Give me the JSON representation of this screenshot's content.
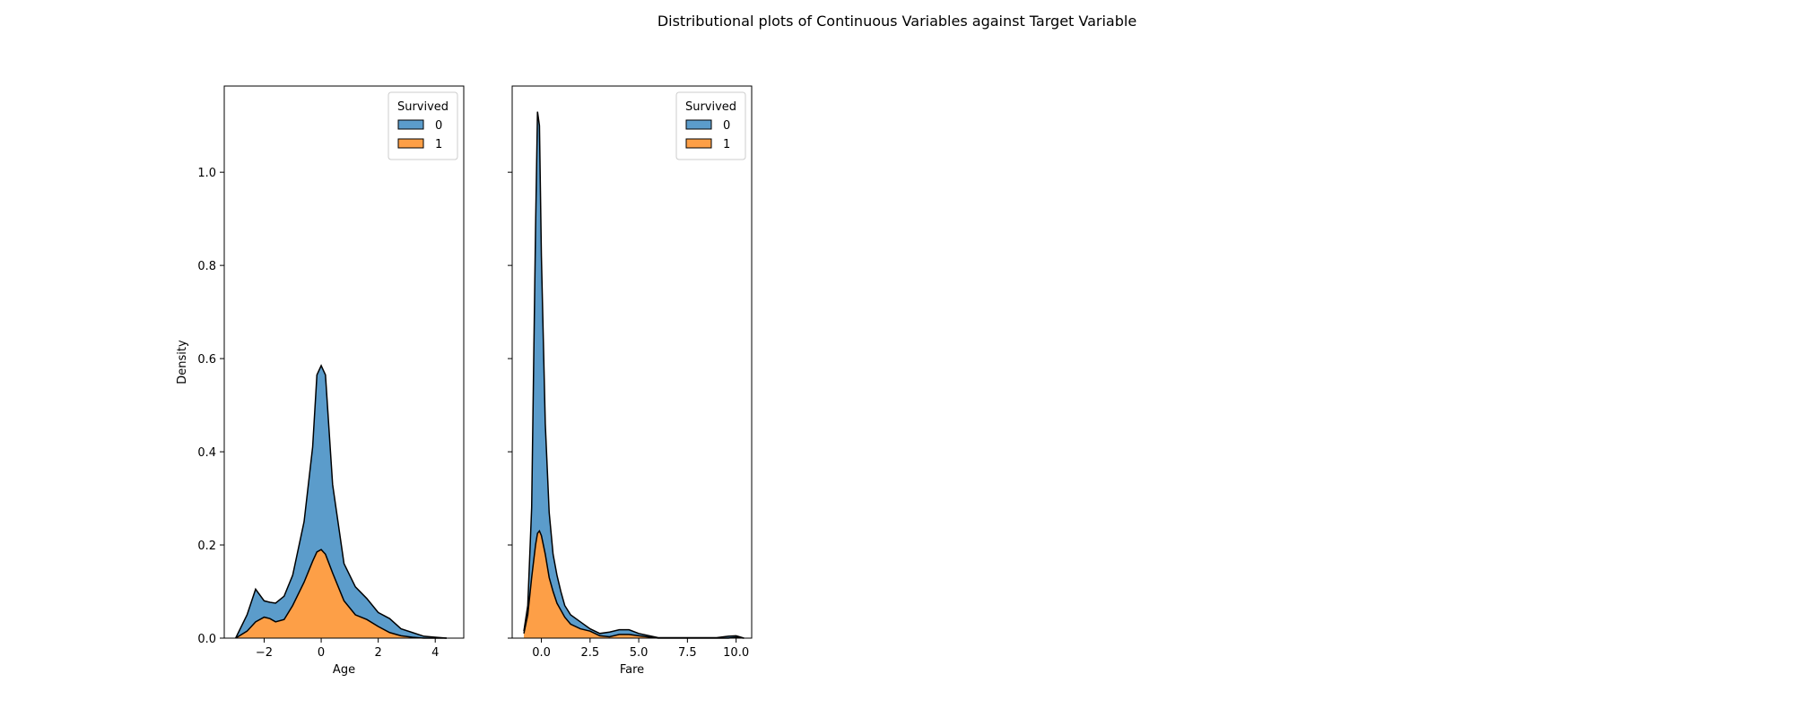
{
  "figure": {
    "suptitle": "Distributional plots of Continuous Variables against Target Variable"
  },
  "colors": {
    "class_0": "#5b9ccb",
    "class_1": "#fd9f47",
    "outline": "#000000"
  },
  "chart_data": [
    {
      "type": "area",
      "subtype": "stacked-kde",
      "xlabel": "Age",
      "ylabel": "Density",
      "xlim": [
        -3.4,
        5.0
      ],
      "ylim": [
        0,
        1.185
      ],
      "xticks": [
        -2,
        0,
        2,
        4
      ],
      "xtick_labels": [
        "−2",
        "0",
        "2",
        "4"
      ],
      "yticks": [
        0.0,
        0.2,
        0.4,
        0.6,
        0.8,
        1.0
      ],
      "ytick_labels": [
        "0.0",
        "0.2",
        "0.4",
        "0.6",
        "0.8",
        "1.0"
      ],
      "show_ytick_labels": true,
      "legend": {
        "title": "Survived",
        "entries": [
          "0",
          "1"
        ],
        "placement": "top-right"
      },
      "x": [
        -3.0,
        -2.6,
        -2.3,
        -2.0,
        -1.8,
        -1.6,
        -1.3,
        -1.0,
        -0.6,
        -0.3,
        -0.15,
        0.0,
        0.15,
        0.4,
        0.8,
        1.2,
        1.6,
        2.0,
        2.4,
        2.8,
        3.2,
        3.6,
        4.0,
        4.4
      ],
      "series": [
        {
          "name": "1",
          "values": [
            0.0,
            0.015,
            0.035,
            0.045,
            0.042,
            0.035,
            0.04,
            0.07,
            0.12,
            0.165,
            0.185,
            0.19,
            0.18,
            0.14,
            0.08,
            0.05,
            0.04,
            0.025,
            0.012,
            0.005,
            0.002,
            0.0,
            0.0,
            0.0
          ]
        },
        {
          "name": "0",
          "values": [
            0.0,
            0.035,
            0.07,
            0.035,
            0.035,
            0.04,
            0.05,
            0.065,
            0.13,
            0.245,
            0.38,
            0.395,
            0.385,
            0.19,
            0.08,
            0.06,
            0.045,
            0.03,
            0.03,
            0.015,
            0.01,
            0.004,
            0.002,
            0.0
          ]
        }
      ]
    },
    {
      "type": "area",
      "subtype": "stacked-kde",
      "xlabel": "Fare",
      "ylabel": "",
      "xlim": [
        -1.5,
        10.8
      ],
      "ylim": [
        0,
        1.185
      ],
      "xticks": [
        0.0,
        2.5,
        5.0,
        7.5,
        10.0
      ],
      "xtick_labels": [
        "0.0",
        "2.5",
        "5.0",
        "7.5",
        "10.0"
      ],
      "yticks": [
        0.0,
        0.2,
        0.4,
        0.6,
        0.8,
        1.0
      ],
      "ytick_labels": [],
      "show_ytick_labels": false,
      "legend": {
        "title": "Survived",
        "entries": [
          "0",
          "1"
        ],
        "placement": "top-right"
      },
      "x": [
        -0.9,
        -0.7,
        -0.5,
        -0.3,
        -0.2,
        -0.1,
        0.0,
        0.2,
        0.4,
        0.6,
        0.8,
        1.0,
        1.2,
        1.5,
        2.0,
        2.5,
        3.0,
        3.5,
        4.0,
        4.5,
        5.0,
        6.0,
        7.0,
        8.0,
        9.0,
        9.6,
        10.0,
        10.4
      ],
      "series": [
        {
          "name": "1",
          "values": [
            0.01,
            0.05,
            0.13,
            0.2,
            0.225,
            0.23,
            0.22,
            0.18,
            0.13,
            0.1,
            0.075,
            0.06,
            0.045,
            0.03,
            0.02,
            0.015,
            0.005,
            0.003,
            0.008,
            0.008,
            0.005,
            0.0,
            0.0,
            0.0,
            0.0,
            0.0,
            0.002,
            0.0
          ]
        },
        {
          "name": "0",
          "values": [
            0.005,
            0.02,
            0.15,
            0.68,
            0.905,
            0.87,
            0.6,
            0.28,
            0.14,
            0.08,
            0.06,
            0.04,
            0.025,
            0.02,
            0.015,
            0.005,
            0.005,
            0.01,
            0.01,
            0.01,
            0.005,
            0.001,
            0.001,
            0.001,
            0.001,
            0.004,
            0.003,
            0.0
          ]
        }
      ]
    }
  ]
}
